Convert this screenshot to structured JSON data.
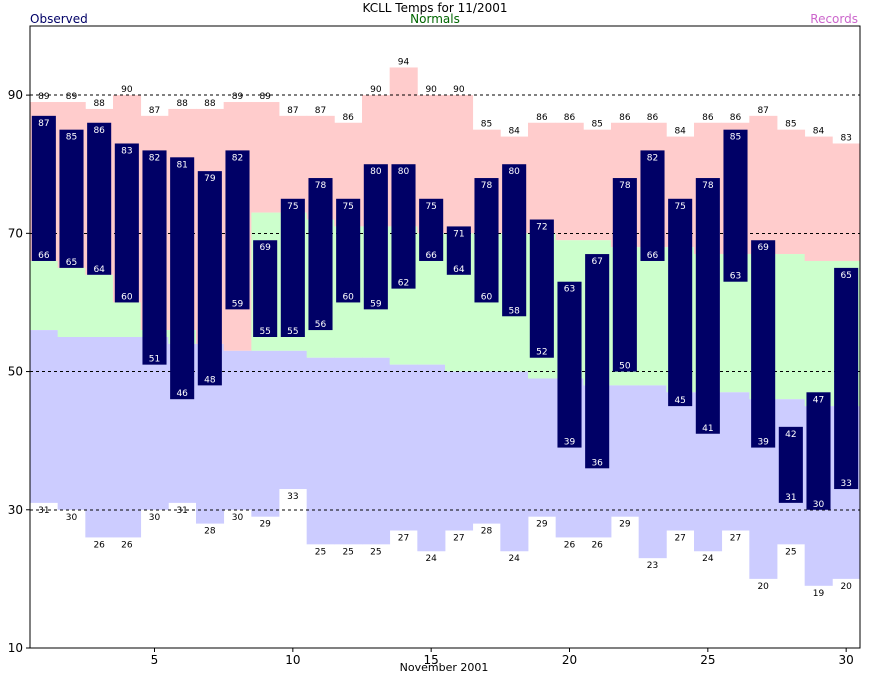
{
  "chart_data": {
    "type": "bar",
    "title": "KCLL Temps for 11/2001",
    "xlabel": "November 2001",
    "ylabel": "",
    "legend": [
      "Observed",
      "Normals",
      "Records"
    ],
    "colors": {
      "record_band": "#ffcccc",
      "normal_band": "#ccffcc",
      "low_band": "#ccccff",
      "observed": "#000066",
      "observed_label": "#ffffff",
      "legend_observed": "#000066",
      "legend_normals": "#006600",
      "legend_records": "#cc66cc"
    },
    "ylim": [
      10,
      100
    ],
    "yticks": [
      10,
      30,
      50,
      70,
      90
    ],
    "xlim": [
      0.5,
      30.5
    ],
    "xticks": [
      5,
      10,
      15,
      20,
      25,
      30
    ],
    "gridlines_y": [
      30,
      50,
      70,
      90
    ],
    "days": [
      1,
      2,
      3,
      4,
      5,
      6,
      7,
      8,
      9,
      10,
      11,
      12,
      13,
      14,
      15,
      16,
      17,
      18,
      19,
      20,
      21,
      22,
      23,
      24,
      25,
      26,
      27,
      28,
      29,
      30
    ],
    "series": [
      {
        "name": "Observed",
        "high": [
          87,
          85,
          86,
          83,
          82,
          81,
          79,
          82,
          69,
          75,
          78,
          75,
          80,
          80,
          75,
          71,
          78,
          80,
          72,
          63,
          67,
          78,
          82,
          75,
          78,
          85,
          69,
          42,
          47,
          65
        ],
        "low": [
          66,
          65,
          64,
          60,
          51,
          46,
          48,
          59,
          55,
          55,
          56,
          60,
          59,
          62,
          66,
          64,
          60,
          58,
          52,
          39,
          36,
          50,
          66,
          45,
          41,
          63,
          39,
          31,
          30,
          33
        ]
      },
      {
        "name": "Records",
        "high": [
          89,
          89,
          88,
          90,
          87,
          88,
          88,
          89,
          89,
          87,
          87,
          86,
          90,
          94,
          90,
          90,
          85,
          84,
          86,
          86,
          85,
          86,
          86,
          84,
          86,
          86,
          87,
          85,
          84,
          83
        ],
        "low": [
          31,
          30,
          26,
          26,
          30,
          31,
          28,
          30,
          29,
          33,
          25,
          25,
          25,
          27,
          24,
          27,
          28,
          24,
          29,
          26,
          26,
          29,
          23,
          27,
          24,
          27,
          20,
          25,
          19,
          20
        ]
      },
      {
        "name": "Normals",
        "high": [
          66,
          65,
          64,
          60,
          56,
          56,
          54,
          53,
          73,
          73,
          72,
          71,
          71,
          71,
          70,
          70,
          70,
          70,
          70,
          69,
          69,
          68,
          68,
          68,
          67,
          67,
          67,
          67,
          66,
          66
        ],
        "low": [
          56,
          55,
          55,
          55,
          55,
          54,
          54,
          53,
          53,
          53,
          52,
          52,
          52,
          51,
          51,
          50,
          50,
          50,
          49,
          49,
          48,
          48,
          48,
          47,
          47,
          47,
          46,
          46,
          45,
          45
        ]
      }
    ]
  }
}
